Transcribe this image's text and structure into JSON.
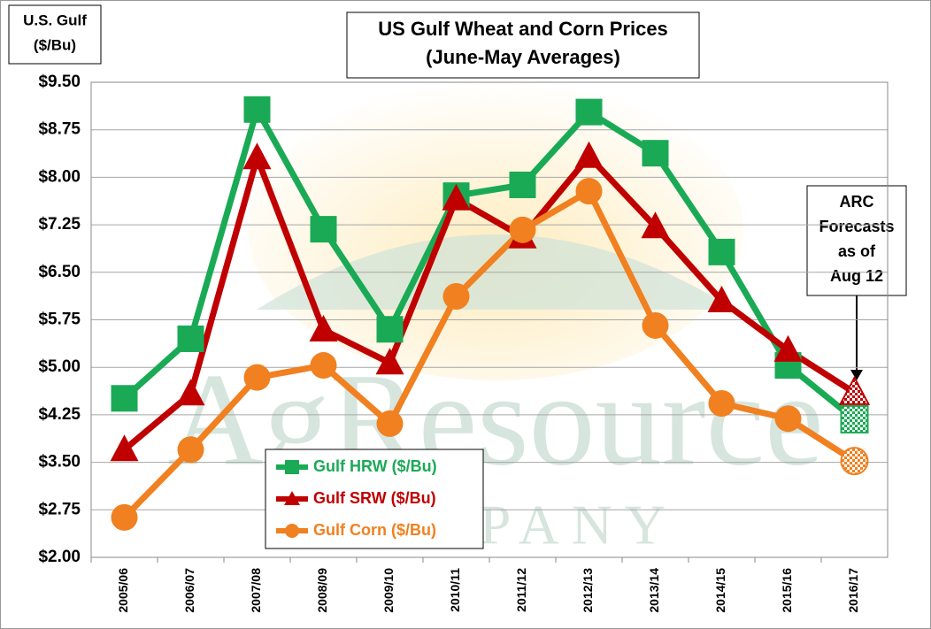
{
  "chart_data": {
    "type": "line",
    "title": "US Gulf Wheat and Corn Prices",
    "subtitle": "(June-May Averages)",
    "y_label": [
      "U.S. Gulf",
      "($/Bu)"
    ],
    "watermark": [
      "AgResource",
      "COMPANY"
    ],
    "annotation": [
      "ARC",
      "Forecasts",
      "as of",
      "Aug 12"
    ],
    "categories": [
      "2005/06",
      "2006/07",
      "2007/08",
      "2008/09",
      "2009/10",
      "2010/11",
      "2011/12",
      "2012/13",
      "2013/14",
      "2014/15",
      "2015/16",
      "2016/17"
    ],
    "series": [
      {
        "name": "Gulf HRW ($/Bu)",
        "color": "#1aaa55",
        "marker": "square",
        "values": [
          4.51,
          5.45,
          9.07,
          7.18,
          5.6,
          7.71,
          7.88,
          9.03,
          8.38,
          6.82,
          5.03,
          4.18
        ]
      },
      {
        "name": "Gulf SRW ($/Bu)",
        "color": "#c00000",
        "marker": "triangle",
        "values": [
          3.7,
          4.58,
          8.31,
          5.59,
          5.07,
          7.66,
          7.06,
          8.33,
          7.22,
          6.05,
          5.27,
          4.6
        ]
      },
      {
        "name": "Gulf Corn ($/Bu)",
        "color": "#f08020",
        "marker": "circle",
        "values": [
          2.63,
          3.7,
          4.84,
          5.03,
          4.11,
          6.12,
          7.17,
          7.78,
          5.66,
          4.43,
          4.19,
          3.52
        ]
      }
    ],
    "ylim": [
      2,
      9.5
    ],
    "yticks": [
      {
        "value": 2,
        "label": "$2.00"
      },
      {
        "value": 2.75,
        "label": "$2.75"
      },
      {
        "value": 3.5,
        "label": "$3.50"
      },
      {
        "value": 4.25,
        "label": "$4.25"
      },
      {
        "value": 5,
        "label": "$5.00"
      },
      {
        "value": 5.75,
        "label": "$5.75"
      },
      {
        "value": 6.5,
        "label": "$6.50"
      },
      {
        "value": 7.25,
        "label": "$7.25"
      },
      {
        "value": 8,
        "label": "$8.00"
      },
      {
        "value": 8.75,
        "label": "$8.75"
      },
      {
        "value": 9.5,
        "label": "$9.50"
      }
    ],
    "grid": true
  }
}
